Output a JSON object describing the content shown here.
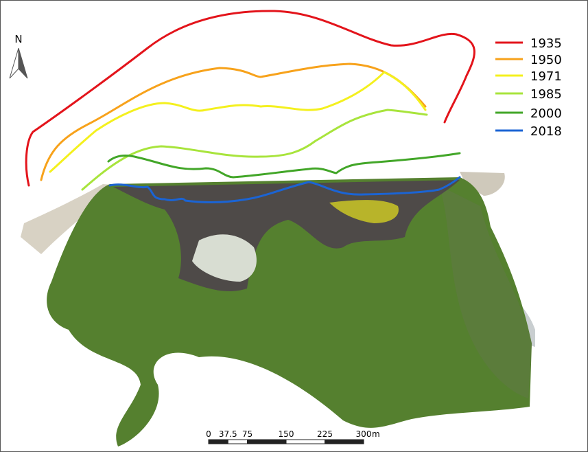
{
  "north": "N",
  "legend": [
    {
      "label": "1935",
      "color": "#e3141b"
    },
    {
      "label": "1950",
      "color": "#f7a21b"
    },
    {
      "label": "1971",
      "color": "#f4f01e"
    },
    {
      "label": "1985",
      "color": "#a8e43c"
    },
    {
      "label": "2000",
      "color": "#42a628"
    },
    {
      "label": "2018",
      "color": "#1b64d4"
    }
  ],
  "scale_bar": {
    "ticks": [
      0,
      37.5,
      75,
      150,
      225,
      300
    ],
    "unit": "m"
  }
}
